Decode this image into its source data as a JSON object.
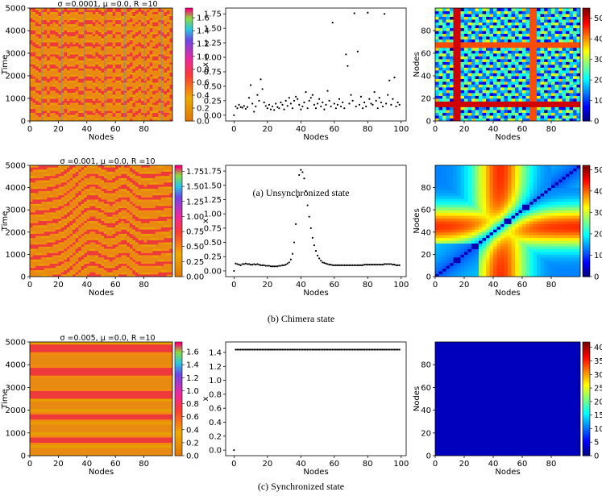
{
  "captions": [
    "(a) Unsynchronized state",
    "(b) Chimera state",
    "(c) Synchronized state"
  ],
  "chart_data": [
    {
      "type": "heatmap",
      "panel": "a1",
      "title": "σ =0.0001, μ =0.0, R =10",
      "xlabel": "Nodes",
      "ylabel": "Time",
      "xlim": [
        0,
        100
      ],
      "ylim": [
        0,
        5000
      ],
      "xticks": [
        0,
        20,
        40,
        60,
        80
      ],
      "yticks": [
        0,
        1000,
        2000,
        3000,
        4000,
        5000
      ],
      "colorbar": {
        "min": 0,
        "max": 1.75,
        "ticks": [
          "0.0",
          "0.2",
          "0.4",
          "0.6",
          "0.8",
          "1.0",
          "1.2",
          "1.4",
          "1.6"
        ],
        "tickvals": [
          0,
          0.2,
          0.4,
          0.6,
          0.8,
          1.0,
          1.2,
          1.4,
          1.6
        ],
        "colormap": "prism"
      },
      "pattern": "unsynchronized"
    },
    {
      "type": "scatter",
      "panel": "a2",
      "xlabel": "Nodes",
      "ylabel": "x",
      "xlim": [
        -5,
        103
      ],
      "ylim": [
        -0.1,
        1.85
      ],
      "xticks": [
        0,
        20,
        40,
        60,
        80,
        100
      ],
      "yticks": [
        "0.00",
        "0.25",
        "0.50",
        "0.75",
        "1.00",
        "1.25",
        "1.50",
        "1.75"
      ],
      "ytickvals": [
        0,
        0.25,
        0.5,
        0.75,
        1.0,
        1.25,
        1.5,
        1.75
      ],
      "x": [
        0,
        1,
        2,
        3,
        4,
        5,
        6,
        7,
        8,
        9,
        10,
        11,
        12,
        13,
        14,
        15,
        16,
        17,
        18,
        19,
        20,
        21,
        22,
        23,
        24,
        25,
        26,
        27,
        28,
        29,
        30,
        31,
        32,
        33,
        34,
        35,
        36,
        37,
        38,
        39,
        40,
        41,
        42,
        43,
        44,
        45,
        46,
        47,
        48,
        49,
        50,
        51,
        52,
        53,
        54,
        55,
        56,
        57,
        58,
        59,
        60,
        61,
        62,
        63,
        64,
        65,
        66,
        67,
        68,
        69,
        70,
        71,
        72,
        73,
        74,
        75,
        76,
        77,
        78,
        79,
        80,
        81,
        82,
        83,
        84,
        85,
        86,
        87,
        88,
        89,
        90,
        91,
        92,
        93,
        94,
        95,
        96,
        97,
        98,
        99
      ],
      "y": [
        0.0,
        0.15,
        0.12,
        0.18,
        0.14,
        0.13,
        0.16,
        0.11,
        0.14,
        0.3,
        0.52,
        0.2,
        0.06,
        0.15,
        0.35,
        0.25,
        0.62,
        0.45,
        0.22,
        0.16,
        0.12,
        0.18,
        0.1,
        0.15,
        0.09,
        0.2,
        0.14,
        0.12,
        0.22,
        0.18,
        0.1,
        0.25,
        0.16,
        0.3,
        0.2,
        0.12,
        0.25,
        0.32,
        0.28,
        0.18,
        0.1,
        0.15,
        0.22,
        0.4,
        0.12,
        0.25,
        0.3,
        0.35,
        0.18,
        0.12,
        0.2,
        0.28,
        0.15,
        0.22,
        0.1,
        0.18,
        0.42,
        0.25,
        0.15,
        1.6,
        0.2,
        0.12,
        0.18,
        0.28,
        0.15,
        0.22,
        0.12,
        1.05,
        0.85,
        0.2,
        0.35,
        0.25,
        1.76,
        0.15,
        1.1,
        0.18,
        0.32,
        0.12,
        0.22,
        0.15,
        1.77,
        0.28,
        0.2,
        0.18,
        0.4,
        0.25,
        0.12,
        0.3,
        0.22,
        0.15,
        1.75,
        0.2,
        0.35,
        0.6,
        0.18,
        0.28,
        0.65,
        0.15,
        0.22,
        0.18
      ]
    },
    {
      "type": "heatmap",
      "panel": "a3",
      "xlabel": "Nodes",
      "ylabel": "Nodes",
      "xlim": [
        0,
        100
      ],
      "ylim": [
        0,
        100
      ],
      "xticks": [
        0,
        20,
        40,
        60,
        80
      ],
      "yticks": [
        0,
        20,
        40,
        60,
        80
      ],
      "colorbar": {
        "min": 0,
        "max": 55,
        "ticks": [
          "0",
          "10",
          "20",
          "30",
          "40",
          "50"
        ],
        "tickvals": [
          0,
          10,
          20,
          30,
          40,
          50
        ],
        "colormap": "jet"
      },
      "pattern": "noisy"
    },
    {
      "type": "heatmap",
      "panel": "b1",
      "title": "σ =0.001, μ =0.0, R =10",
      "xlabel": "Nodes",
      "ylabel": "Time",
      "xlim": [
        0,
        100
      ],
      "ylim": [
        0,
        5000
      ],
      "xticks": [
        0,
        20,
        40,
        60,
        80
      ],
      "yticks": [
        0,
        1000,
        2000,
        3000,
        4000,
        5000
      ],
      "colorbar": {
        "min": 0,
        "max": 1.85,
        "ticks": [
          "0.00",
          "0.25",
          "0.50",
          "0.75",
          "1.00",
          "1.25",
          "1.50",
          "1.75"
        ],
        "tickvals": [
          0,
          0.25,
          0.5,
          0.75,
          1.0,
          1.25,
          1.5,
          1.75
        ],
        "colormap": "prism"
      },
      "pattern": "chimera"
    },
    {
      "type": "scatter",
      "panel": "b2",
      "xlabel": "Nodes",
      "ylabel": "x",
      "xlim": [
        -5,
        103
      ],
      "ylim": [
        -0.1,
        1.85
      ],
      "xticks": [
        0,
        20,
        40,
        60,
        80,
        100
      ],
      "yticks": [
        "0.00",
        "0.25",
        "0.50",
        "0.75",
        "1.00",
        "1.25",
        "1.50",
        "1.75"
      ],
      "ytickvals": [
        0,
        0.25,
        0.5,
        0.75,
        1.0,
        1.25,
        1.5,
        1.75
      ],
      "x": [
        0,
        1,
        2,
        3,
        4,
        5,
        6,
        7,
        8,
        9,
        10,
        11,
        12,
        13,
        14,
        15,
        16,
        17,
        18,
        19,
        20,
        21,
        22,
        23,
        24,
        25,
        26,
        27,
        28,
        29,
        30,
        31,
        32,
        33,
        34,
        35,
        36,
        37,
        38,
        39,
        40,
        41,
        42,
        43,
        44,
        45,
        46,
        47,
        48,
        49,
        50,
        51,
        52,
        53,
        54,
        55,
        56,
        57,
        58,
        59,
        60,
        61,
        62,
        63,
        64,
        65,
        66,
        67,
        68,
        69,
        70,
        71,
        72,
        73,
        74,
        75,
        76,
        77,
        78,
        79,
        80,
        81,
        82,
        83,
        84,
        85,
        86,
        87,
        88,
        89,
        90,
        91,
        92,
        93,
        94,
        95,
        96,
        97,
        98,
        99
      ],
      "y": [
        0.0,
        0.13,
        0.12,
        0.11,
        0.1,
        0.12,
        0.12,
        0.13,
        0.12,
        0.12,
        0.11,
        0.11,
        0.12,
        0.11,
        0.12,
        0.11,
        0.1,
        0.1,
        0.1,
        0.09,
        0.09,
        0.09,
        0.08,
        0.08,
        0.08,
        0.08,
        0.08,
        0.09,
        0.09,
        0.1,
        0.1,
        0.11,
        0.13,
        0.15,
        0.2,
        0.3,
        0.5,
        0.82,
        1.3,
        1.68,
        1.77,
        1.73,
        1.62,
        1.4,
        1.15,
        0.95,
        0.75,
        0.58,
        0.45,
        0.35,
        0.27,
        0.22,
        0.18,
        0.15,
        0.14,
        0.13,
        0.12,
        0.11,
        0.11,
        0.1,
        0.1,
        0.1,
        0.1,
        0.1,
        0.1,
        0.1,
        0.1,
        0.1,
        0.1,
        0.1,
        0.1,
        0.1,
        0.1,
        0.1,
        0.1,
        0.1,
        0.1,
        0.1,
        0.11,
        0.11,
        0.11,
        0.11,
        0.11,
        0.11,
        0.11,
        0.11,
        0.11,
        0.11,
        0.11,
        0.11,
        0.12,
        0.12,
        0.12,
        0.12,
        0.12,
        0.11,
        0.11,
        0.1,
        0.1,
        0.1
      ]
    },
    {
      "type": "heatmap",
      "panel": "b3",
      "xlabel": "Nodes",
      "ylabel": "Nodes",
      "xlim": [
        0,
        100
      ],
      "ylim": [
        0,
        100
      ],
      "xticks": [
        0,
        20,
        40,
        60,
        80
      ],
      "yticks": [
        0,
        20,
        40,
        60,
        80
      ],
      "colorbar": {
        "min": 0,
        "max": 52,
        "ticks": [
          "0",
          "10",
          "20",
          "30",
          "40",
          "50"
        ],
        "tickvals": [
          0,
          10,
          20,
          30,
          40,
          50
        ],
        "colormap": "jet"
      },
      "pattern": "chimera-distance"
    },
    {
      "type": "heatmap",
      "panel": "c1",
      "title": "σ =0.005, μ =0.0, R =10",
      "xlabel": "Nodes",
      "ylabel": "Time",
      "xlim": [
        0,
        100
      ],
      "ylim": [
        0,
        5000
      ],
      "xticks": [
        0,
        20,
        40,
        60,
        80
      ],
      "yticks": [
        0,
        1000,
        2000,
        3000,
        4000,
        5000
      ],
      "colorbar": {
        "min": 0,
        "max": 1.75,
        "ticks": [
          "0.0",
          "0.2",
          "0.4",
          "0.6",
          "0.8",
          "1.0",
          "1.2",
          "1.4",
          "1.6"
        ],
        "tickvals": [
          0,
          0.2,
          0.4,
          0.6,
          0.8,
          1.0,
          1.2,
          1.4,
          1.6
        ],
        "colormap": "prism"
      },
      "pattern": "synchronized"
    },
    {
      "type": "scatter",
      "panel": "c2",
      "xlabel": "Nodes",
      "ylabel": "x",
      "xlim": [
        -5,
        103
      ],
      "ylim": [
        -0.08,
        1.55
      ],
      "xticks": [
        0,
        20,
        40,
        60,
        80,
        100
      ],
      "yticks": [
        "0.0",
        "0.2",
        "0.4",
        "0.6",
        "0.8",
        "1.0",
        "1.2",
        "1.4"
      ],
      "ytickvals": [
        0,
        0.2,
        0.4,
        0.6,
        0.8,
        1.0,
        1.2,
        1.4
      ],
      "x": [
        0,
        1,
        2,
        3,
        4,
        5,
        6,
        7,
        8,
        9,
        10,
        11,
        12,
        13,
        14,
        15,
        16,
        17,
        18,
        19,
        20,
        21,
        22,
        23,
        24,
        25,
        26,
        27,
        28,
        29,
        30,
        31,
        32,
        33,
        34,
        35,
        36,
        37,
        38,
        39,
        40,
        41,
        42,
        43,
        44,
        45,
        46,
        47,
        48,
        49,
        50,
        51,
        52,
        53,
        54,
        55,
        56,
        57,
        58,
        59,
        60,
        61,
        62,
        63,
        64,
        65,
        66,
        67,
        68,
        69,
        70,
        71,
        72,
        73,
        74,
        75,
        76,
        77,
        78,
        79,
        80,
        81,
        82,
        83,
        84,
        85,
        86,
        87,
        88,
        89,
        90,
        91,
        92,
        93,
        94,
        95,
        96,
        97,
        98,
        99
      ],
      "y": [
        0.0,
        1.44,
        1.44,
        1.44,
        1.44,
        1.44,
        1.44,
        1.44,
        1.44,
        1.44,
        1.44,
        1.44,
        1.44,
        1.44,
        1.44,
        1.44,
        1.44,
        1.44,
        1.44,
        1.44,
        1.44,
        1.44,
        1.44,
        1.44,
        1.44,
        1.44,
        1.44,
        1.44,
        1.44,
        1.44,
        1.44,
        1.44,
        1.44,
        1.44,
        1.44,
        1.44,
        1.44,
        1.44,
        1.44,
        1.44,
        1.44,
        1.44,
        1.44,
        1.44,
        1.44,
        1.44,
        1.44,
        1.44,
        1.44,
        1.44,
        1.44,
        1.44,
        1.44,
        1.44,
        1.44,
        1.44,
        1.44,
        1.44,
        1.44,
        1.44,
        1.44,
        1.44,
        1.44,
        1.44,
        1.44,
        1.44,
        1.44,
        1.44,
        1.44,
        1.44,
        1.44,
        1.44,
        1.44,
        1.44,
        1.44,
        1.44,
        1.44,
        1.44,
        1.44,
        1.44,
        1.44,
        1.44,
        1.44,
        1.44,
        1.44,
        1.44,
        1.44,
        1.44,
        1.44,
        1.44,
        1.44,
        1.44,
        1.44,
        1.44,
        1.44,
        1.44,
        1.44,
        1.44,
        1.44,
        1.44
      ]
    },
    {
      "type": "heatmap",
      "panel": "c3",
      "xlabel": "Nodes",
      "ylabel": "Nodes",
      "xlim": [
        0,
        100
      ],
      "ylim": [
        0,
        100
      ],
      "xticks": [
        0,
        20,
        40,
        60,
        80
      ],
      "yticks": [
        0,
        20,
        40,
        60,
        80
      ],
      "colorbar": {
        "min": 0,
        "max": 42,
        "ticks": [
          "0",
          "5",
          "10",
          "15",
          "20",
          "25",
          "30",
          "35",
          "40"
        ],
        "tickvals": [
          0,
          5,
          10,
          15,
          20,
          25,
          30,
          35,
          40
        ],
        "colormap": "jet"
      },
      "pattern": "uniform-low"
    }
  ]
}
